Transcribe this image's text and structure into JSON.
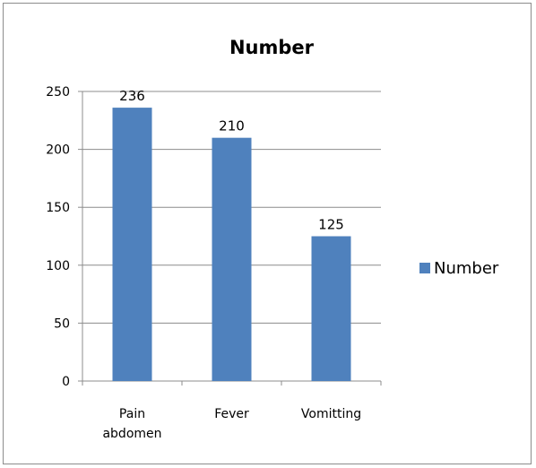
{
  "chart_data": {
    "type": "bar",
    "title": "Number",
    "categories": [
      [
        "Pain",
        "abdomen"
      ],
      [
        "Fever"
      ],
      [
        "Vomitting"
      ]
    ],
    "series": [
      {
        "name": "Number",
        "values": [
          236,
          210,
          125
        ],
        "color": "#4f81bd"
      }
    ],
    "yticks": [
      "0",
      "50",
      "100",
      "150",
      "200",
      "250"
    ],
    "ylim": [
      0,
      250
    ],
    "grid": true,
    "legend_position": "right"
  }
}
